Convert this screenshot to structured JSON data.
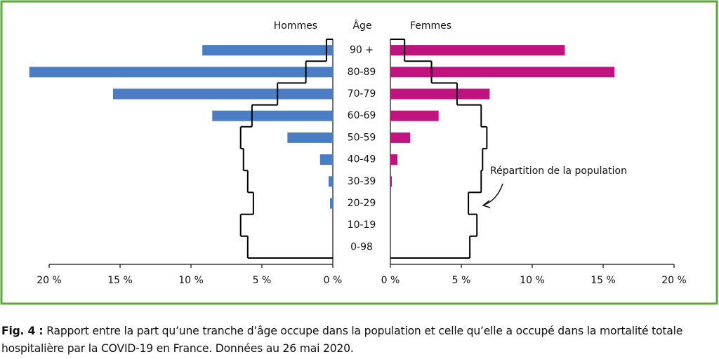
{
  "chart_data": {
    "type": "pyramid",
    "axis_title": "Âge",
    "categories": [
      "90 +",
      "80-89",
      "70-79",
      "60-69",
      "50-59",
      "40-49",
      "30-39",
      "20-29",
      "10-19",
      "0-98"
    ],
    "series": [
      {
        "name": "Hommes",
        "color": "#4a7dc4",
        "values": [
          9.2,
          21.4,
          15.5,
          8.5,
          3.2,
          0.9,
          0.3,
          0.2,
          0,
          0
        ]
      },
      {
        "name": "Femmes",
        "color": "#c0137f",
        "values": [
          12.3,
          15.8,
          7.0,
          3.4,
          1.4,
          0.5,
          0.1,
          0,
          0,
          0
        ]
      }
    ],
    "outline": {
      "label": "Répartition de la population",
      "color": "#000000",
      "values": [
        [
          0.45,
          1.9,
          3.9,
          5.7,
          6.5,
          6.3,
          6.0,
          5.6,
          6.5,
          6.0
        ],
        [
          1.0,
          2.9,
          4.7,
          6.4,
          6.8,
          6.5,
          6.4,
          5.5,
          6.1,
          5.6
        ]
      ]
    },
    "xlim": [
      0,
      20
    ],
    "xticks": [
      {
        "value": 0,
        "label": "0 %"
      },
      {
        "value": 5,
        "label": "5 %"
      },
      {
        "value": 10,
        "label": "10 %"
      },
      {
        "value": 15,
        "label": "15 %"
      },
      {
        "value": 20,
        "label": "20 %"
      }
    ]
  },
  "caption": {
    "label": "Fig. 4 :",
    "text": "Rapport entre la part qu’une tranche d’âge occupe dans la population et celle qu’elle a occupé dans la mortalité totale hospitalière par la COVID-19 en France. Données au 26 mai 2020."
  }
}
